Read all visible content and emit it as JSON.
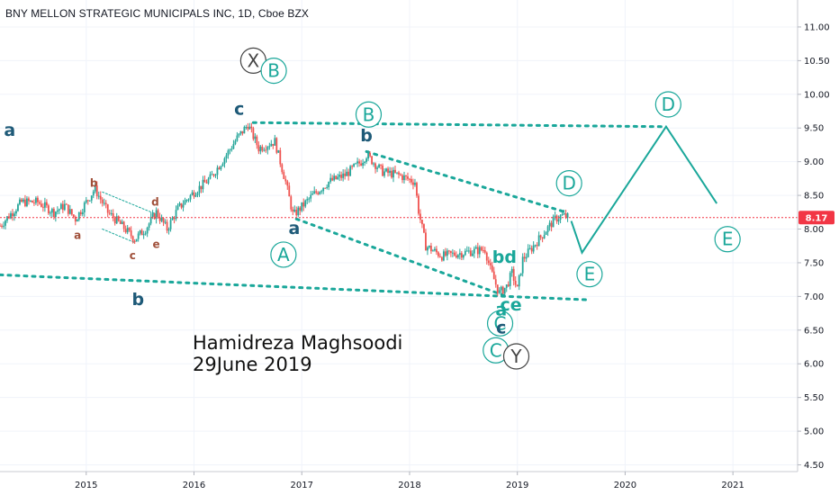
{
  "header": {
    "title": "BNY MELLON STRATEGIC MUNICIPALS INC, 1D, Cboe BZX"
  },
  "annotation": {
    "line1": "Hamidreza Maghsoodi",
    "line2": "29June 2019"
  },
  "price_badge": {
    "value": "8.17",
    "color": "#f23645"
  },
  "colors": {
    "up": "#26a69a",
    "down": "#ef5350",
    "wave": "#1aa79a",
    "navy": "#1e5a78",
    "brown": "#a0503a",
    "circle_gray": "#444444"
  },
  "chart_data": {
    "type": "candlestick",
    "symbol": "BNY MELLON STRATEGIC MUNICIPALS INC",
    "interval": "1D",
    "exchange": "Cboe BZX",
    "xlim": [
      2014.2,
      2021.6
    ],
    "ylim": [
      4.4,
      11.4
    ],
    "y_ticks": [
      "11.00",
      "10.50",
      "10.00",
      "9.50",
      "9.00",
      "8.50",
      "8.00",
      "7.50",
      "7.00",
      "6.50",
      "6.00",
      "5.50",
      "5.00",
      "4.50"
    ],
    "x_ticks": [
      "2015",
      "2016",
      "2017",
      "2018",
      "2019",
      "2020",
      "2021"
    ],
    "last_price": 8.17,
    "price_path": [
      [
        2014.2,
        8.05
      ],
      [
        2014.4,
        8.4
      ],
      [
        2014.55,
        8.4
      ],
      [
        2014.7,
        8.25
      ],
      [
        2014.8,
        8.35
      ],
      [
        2014.9,
        8.15
      ],
      [
        2015.08,
        8.6
      ],
      [
        2015.2,
        8.25
      ],
      [
        2015.33,
        8.05
      ],
      [
        2015.45,
        7.85
      ],
      [
        2015.55,
        8.0
      ],
      [
        2015.65,
        8.25
      ],
      [
        2015.75,
        8.0
      ],
      [
        2015.85,
        8.3
      ],
      [
        2016.0,
        8.55
      ],
      [
        2016.15,
        8.75
      ],
      [
        2016.3,
        9.1
      ],
      [
        2016.4,
        9.35
      ],
      [
        2016.5,
        9.55
      ],
      [
        2016.6,
        9.2
      ],
      [
        2016.75,
        9.3
      ],
      [
        2016.85,
        8.7
      ],
      [
        2016.92,
        8.2
      ],
      [
        2017.1,
        8.5
      ],
      [
        2017.25,
        8.7
      ],
      [
        2017.4,
        8.8
      ],
      [
        2017.55,
        9.0
      ],
      [
        2017.6,
        9.1
      ],
      [
        2017.75,
        8.85
      ],
      [
        2017.9,
        8.8
      ],
      [
        2018.05,
        8.7
      ],
      [
        2018.08,
        8.3
      ],
      [
        2018.15,
        7.75
      ],
      [
        2018.3,
        7.6
      ],
      [
        2018.5,
        7.65
      ],
      [
        2018.7,
        7.7
      ],
      [
        2018.75,
        7.4
      ],
      [
        2018.83,
        7.05
      ],
      [
        2018.9,
        7.15
      ],
      [
        2018.95,
        7.35
      ],
      [
        2019.0,
        7.1
      ],
      [
        2019.05,
        7.55
      ],
      [
        2019.15,
        7.75
      ],
      [
        2019.25,
        7.95
      ],
      [
        2019.35,
        8.15
      ],
      [
        2019.42,
        8.2
      ],
      [
        2019.48,
        8.17
      ]
    ],
    "projection": [
      [
        2019.5,
        8.12
      ],
      [
        2019.6,
        7.65
      ],
      [
        2020.38,
        9.52
      ],
      [
        2020.85,
        8.38
      ]
    ],
    "trendlines": [
      {
        "from": [
          2016.55,
          9.58
        ],
        "to": [
          2020.35,
          9.52
        ]
      },
      {
        "from": [
          2017.6,
          9.15
        ],
        "to": [
          2019.45,
          8.25
        ]
      },
      {
        "from": [
          2016.95,
          8.15
        ],
        "to": [
          2018.9,
          7.0
        ]
      },
      {
        "from": [
          2014.2,
          7.32
        ],
        "to": [
          2019.65,
          6.95
        ]
      },
      {
        "from": [
          2015.15,
          8.55
        ],
        "to": [
          2015.65,
          8.22
        ]
      },
      {
        "from": [
          2015.15,
          8.0
        ],
        "to": [
          2015.45,
          7.8
        ]
      }
    ],
    "labels_circled": [
      {
        "text": "X",
        "x": 2016.55,
        "y": 10.5,
        "style": "gray"
      },
      {
        "text": "B",
        "x": 2016.74,
        "y": 10.35,
        "style": "teal"
      },
      {
        "text": "B",
        "x": 2017.62,
        "y": 9.7,
        "style": "teal"
      },
      {
        "text": "D",
        "x": 2020.4,
        "y": 9.85,
        "style": "teal"
      },
      {
        "text": "D",
        "x": 2019.48,
        "y": 8.68,
        "style": "teal"
      },
      {
        "text": "A",
        "x": 2016.83,
        "y": 7.62,
        "style": "teal"
      },
      {
        "text": "E",
        "x": 2019.67,
        "y": 7.33,
        "style": "teal"
      },
      {
        "text": "E",
        "x": 2020.95,
        "y": 7.85,
        "style": "teal"
      },
      {
        "text": "C",
        "x": 2018.84,
        "y": 6.6,
        "style": "teal"
      },
      {
        "text": "C",
        "x": 2018.8,
        "y": 6.2,
        "style": "teal"
      },
      {
        "text": "Y",
        "x": 2018.99,
        "y": 6.11,
        "style": "gray"
      }
    ],
    "labels_plain": [
      {
        "text": "c",
        "x": 2016.42,
        "y": 9.7,
        "style": "navy",
        "size": "big"
      },
      {
        "text": "a",
        "x": 2014.29,
        "y": 9.38,
        "style": "navy",
        "size": "big"
      },
      {
        "text": "b",
        "x": 2017.6,
        "y": 9.3,
        "style": "navy",
        "size": "big"
      },
      {
        "text": "a",
        "x": 2016.93,
        "y": 7.93,
        "style": "navy",
        "size": "big"
      },
      {
        "text": "b",
        "x": 2015.48,
        "y": 6.87,
        "style": "navy",
        "size": "big"
      },
      {
        "text": "bd",
        "x": 2018.88,
        "y": 7.5,
        "style": "teal",
        "size": "big"
      },
      {
        "text": "a",
        "x": 2018.85,
        "y": 6.72,
        "style": "teal",
        "size": "big"
      },
      {
        "text": "ce",
        "x": 2018.94,
        "y": 6.79,
        "style": "teal",
        "size": "big"
      },
      {
        "text": "c",
        "x": 2018.85,
        "y": 6.45,
        "style": "navy",
        "size": "big"
      },
      {
        "text": "b",
        "x": 2015.07,
        "y": 8.63,
        "style": "brown",
        "size": "small"
      },
      {
        "text": "a",
        "x": 2014.92,
        "y": 7.85,
        "style": "brown",
        "size": "small"
      },
      {
        "text": "c",
        "x": 2015.43,
        "y": 7.55,
        "style": "brown",
        "size": "small"
      },
      {
        "text": "d",
        "x": 2015.64,
        "y": 8.35,
        "style": "brown",
        "size": "small"
      },
      {
        "text": "e",
        "x": 2015.65,
        "y": 7.72,
        "style": "brown",
        "size": "small"
      }
    ]
  }
}
